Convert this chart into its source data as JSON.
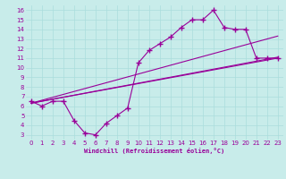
{
  "xlabel": "Windchill (Refroidissement éolien,°C)",
  "bg_color": "#c8ecea",
  "line_color": "#990099",
  "grid_color": "#aadddd",
  "xlim": [
    -0.5,
    23.5
  ],
  "ylim": [
    2.5,
    16.5
  ],
  "xticks": [
    0,
    1,
    2,
    3,
    4,
    5,
    6,
    7,
    8,
    9,
    10,
    11,
    12,
    13,
    14,
    15,
    16,
    17,
    18,
    19,
    20,
    21,
    22,
    23
  ],
  "yticks": [
    3,
    4,
    5,
    6,
    7,
    8,
    9,
    10,
    11,
    12,
    13,
    14,
    15,
    16
  ],
  "series1_x": [
    0,
    1,
    2,
    3,
    4,
    5,
    6,
    7,
    8,
    9,
    10,
    11,
    12,
    13,
    14,
    15,
    16,
    17,
    18,
    19,
    20,
    21,
    22,
    23
  ],
  "series1_y": [
    6.5,
    6.0,
    6.5,
    6.5,
    4.5,
    3.2,
    3.0,
    4.2,
    5.0,
    5.8,
    10.5,
    11.8,
    12.5,
    13.2,
    14.2,
    15.0,
    15.0,
    16.0,
    14.2,
    14.0,
    14.0,
    11.0,
    11.0,
    11.0
  ],
  "trend1_x": [
    0,
    23
  ],
  "trend1_y": [
    6.3,
    11.1
  ],
  "trend2_x": [
    0,
    23
  ],
  "trend2_y": [
    6.3,
    11.0
  ],
  "trend3_x": [
    0,
    23
  ],
  "trend3_y": [
    6.3,
    13.3
  ]
}
